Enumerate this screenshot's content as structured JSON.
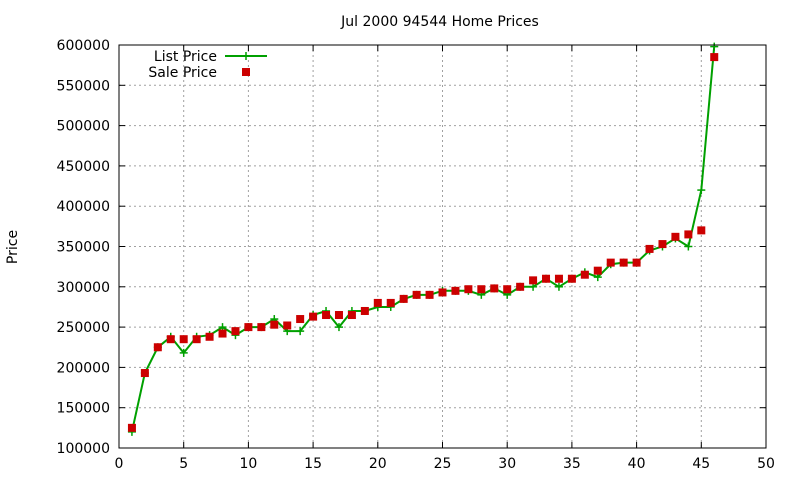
{
  "chart_data": {
    "type": "line",
    "title": "Jul 2000 94544 Home Prices",
    "xlabel": "",
    "ylabel": "Price",
    "xlim": [
      0,
      50
    ],
    "ylim": [
      100000,
      600000
    ],
    "xticks": [
      "0",
      "5",
      "10",
      "15",
      "20",
      "25",
      "30",
      "35",
      "40",
      "45",
      "50"
    ],
    "yticks": [
      "100000",
      "150000",
      "200000",
      "250000",
      "300000",
      "350000",
      "400000",
      "450000",
      "500000",
      "550000",
      "600000"
    ],
    "grid": true,
    "legend_position": "top-left",
    "series": [
      {
        "name": "List Price",
        "style": "line-with-plus-markers",
        "color": "#00a000",
        "x": [
          1,
          2,
          3,
          4,
          5,
          6,
          7,
          8,
          9,
          10,
          11,
          12,
          13,
          14,
          15,
          16,
          17,
          18,
          19,
          20,
          21,
          22,
          23,
          24,
          25,
          26,
          27,
          28,
          29,
          30,
          31,
          32,
          33,
          34,
          35,
          36,
          37,
          38,
          39,
          40,
          41,
          42,
          43,
          44,
          45,
          46
        ],
        "y": [
          120000,
          193000,
          225000,
          238000,
          218000,
          238000,
          240000,
          250000,
          240000,
          250000,
          250000,
          260000,
          245000,
          245000,
          265000,
          270000,
          250000,
          270000,
          270000,
          275000,
          275000,
          285000,
          290000,
          290000,
          295000,
          295000,
          295000,
          290000,
          298000,
          290000,
          300000,
          300000,
          310000,
          300000,
          310000,
          318000,
          312000,
          328000,
          330000,
          330000,
          345000,
          350000,
          360000,
          350000,
          420000,
          598000
        ]
      },
      {
        "name": "Sale Price",
        "style": "square-markers",
        "color": "#cc0000",
        "x": [
          1,
          2,
          3,
          4,
          5,
          6,
          7,
          8,
          9,
          10,
          11,
          12,
          13,
          14,
          15,
          16,
          17,
          18,
          19,
          20,
          21,
          22,
          23,
          24,
          25,
          26,
          27,
          28,
          29,
          30,
          31,
          32,
          33,
          34,
          35,
          36,
          37,
          38,
          39,
          40,
          41,
          42,
          43,
          44,
          45,
          46
        ],
        "y": [
          125000,
          193000,
          225000,
          235000,
          235000,
          235000,
          238000,
          242000,
          245000,
          250000,
          250000,
          253000,
          252000,
          260000,
          263000,
          265000,
          265000,
          265000,
          270000,
          280000,
          280000,
          285000,
          290000,
          290000,
          293000,
          295000,
          297000,
          297000,
          298000,
          297000,
          300000,
          308000,
          310000,
          310000,
          310000,
          315000,
          320000,
          330000,
          330000,
          330000,
          347000,
          353000,
          362000,
          365000,
          370000,
          585000
        ]
      }
    ]
  }
}
